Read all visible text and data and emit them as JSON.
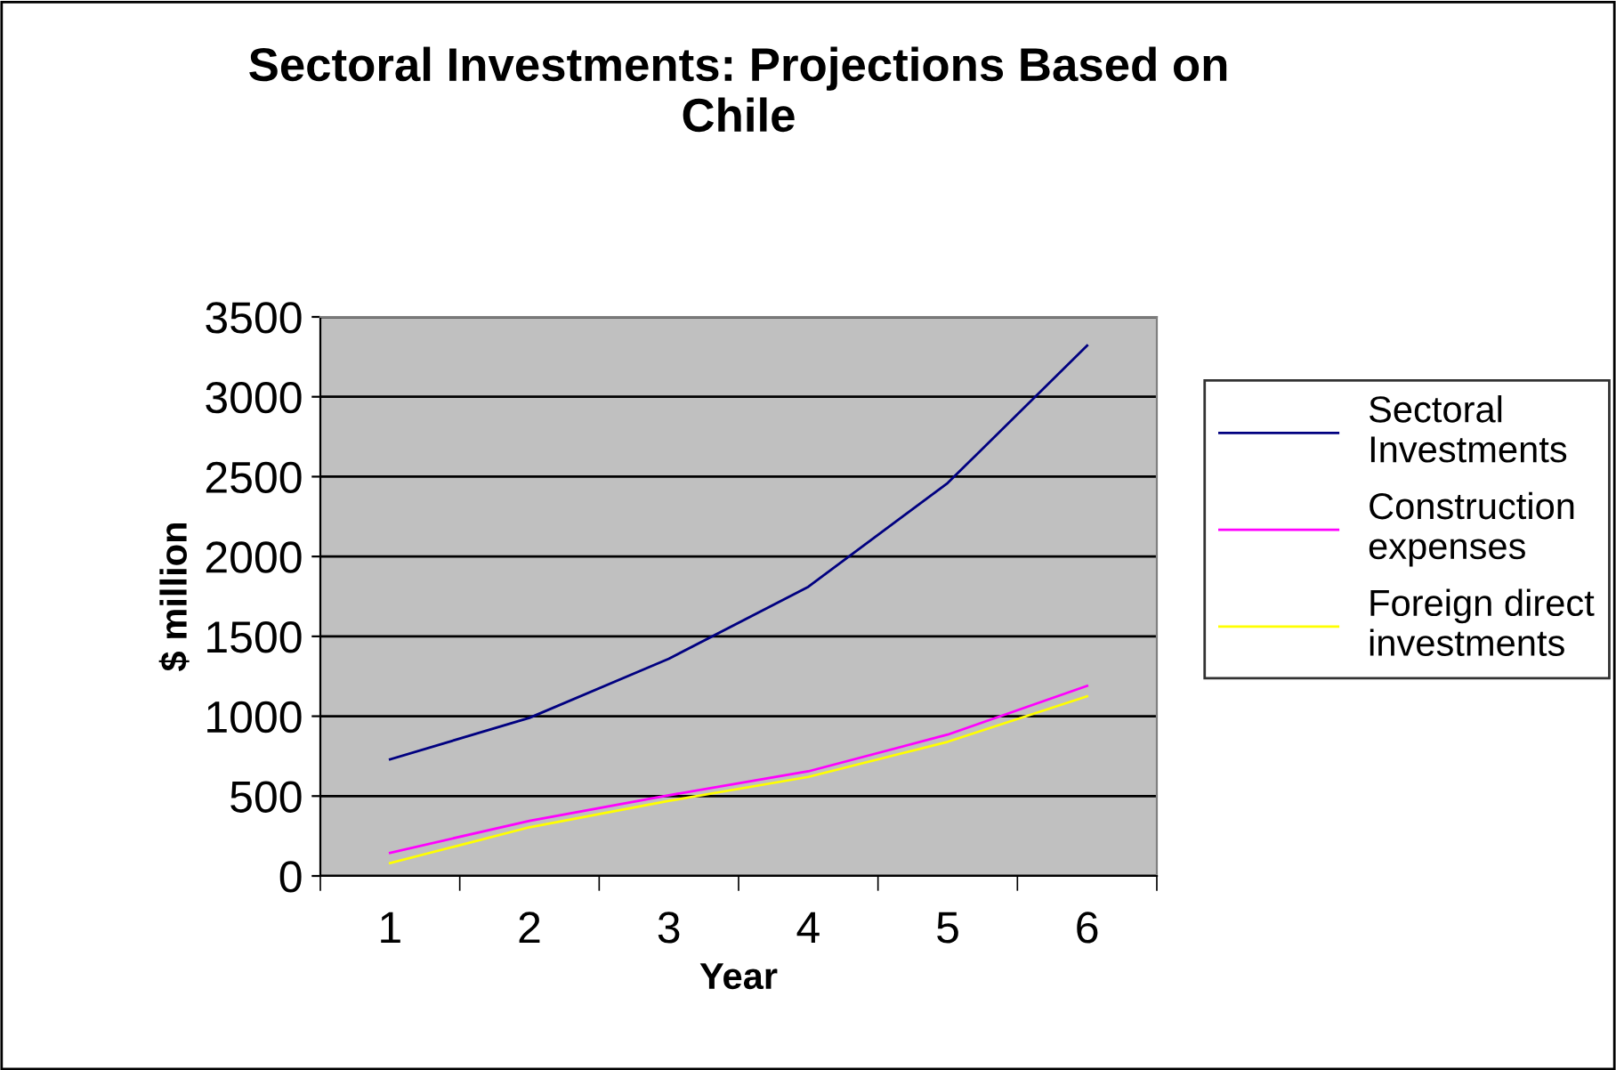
{
  "chart_data": {
    "type": "line",
    "title": "Sectoral Investments: Projections Based on\nChile",
    "xlabel": "Year",
    "ylabel": "$ million",
    "categories": [
      "1",
      "2",
      "3",
      "4",
      "5",
      "6"
    ],
    "series": [
      {
        "name": "Sectoral\nInvestments",
        "color": "#000080",
        "values": [
          730,
          990,
          1360,
          1810,
          2460,
          3320
        ]
      },
      {
        "name": "Construction\nexpenses",
        "color": "#ff00ff",
        "values": [
          145,
          345,
          505,
          655,
          885,
          1190
        ]
      },
      {
        "name": "Foreign direct\ninvestments",
        "color": "#ffff00",
        "values": [
          80,
          305,
          470,
          620,
          840,
          1125
        ]
      }
    ],
    "ylim": [
      0,
      3500
    ],
    "yticks": [
      0,
      500,
      1000,
      1500,
      2000,
      2500,
      3000,
      3500
    ],
    "grid": "y",
    "legend": "right",
    "marker": "none",
    "line_style": "solid"
  }
}
